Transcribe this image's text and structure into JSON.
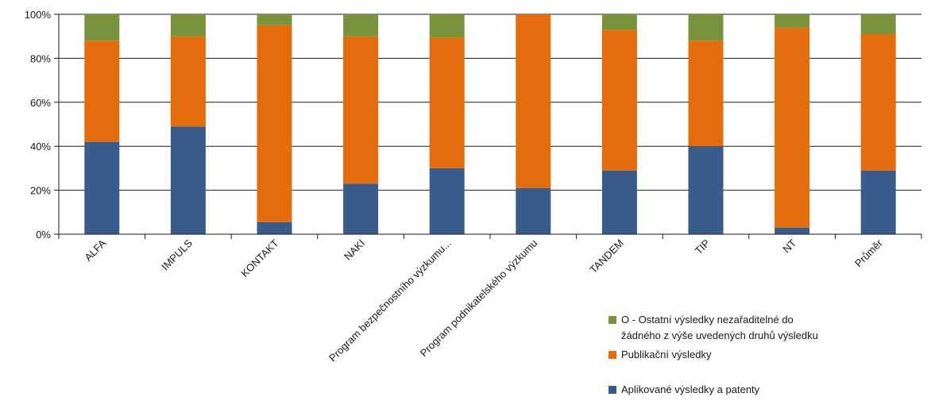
{
  "chart_data": {
    "type": "bar",
    "stacked": true,
    "normalized": true,
    "categories": [
      "ALFA",
      "IMPULS",
      "KONTAKT",
      "NAKI",
      "Program bezpečnostního výzkumu...",
      "Program podnikatelského výzkumu",
      "TANDEM",
      "TIP",
      "NT",
      "Průměr"
    ],
    "series": [
      {
        "name": "Aplikované výsledky a patenty",
        "color": "#385D8A",
        "values": [
          42,
          49,
          5.5,
          23,
          30,
          21,
          29,
          40,
          3,
          29
        ]
      },
      {
        "name": "Publikační výsledky",
        "color": "#E46C0A",
        "values": [
          46,
          41,
          89.5,
          67,
          59.5,
          79,
          64,
          48,
          91,
          62
        ]
      },
      {
        "name": "O - Ostatní výsledky nezařaditelné do žádného z výše uvedených druhů výsledku",
        "legend_lines": [
          "O - Ostatní výsledky nezařaditelné do",
          "žádného z výše uvedených druhů výsledku"
        ],
        "color": "#77933C",
        "values": [
          12,
          10,
          5,
          10,
          10.5,
          0,
          7,
          12,
          6,
          9
        ]
      }
    ],
    "y_ticks": [
      "0%",
      "20%",
      "40%",
      "60%",
      "80%",
      "100%"
    ],
    "ylim": [
      0,
      100
    ],
    "grid": true,
    "legend_position": "bottom-right",
    "title": "",
    "xlabel": "",
    "ylabel": ""
  }
}
